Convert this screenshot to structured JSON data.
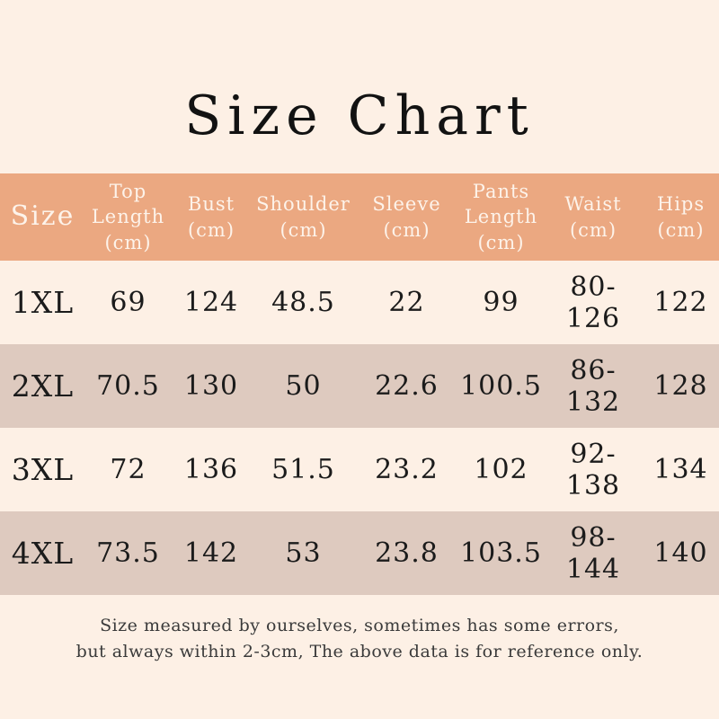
{
  "title": "Size Chart",
  "colors": {
    "page_bg": "#fdf0e5",
    "header_bg": "#eba881",
    "row_alt_bg": "#decabf",
    "header_text": "#fdf3ea",
    "body_text": "#1b1b1b",
    "note_text": "#3a3a3a"
  },
  "table": {
    "columns": [
      {
        "label": "Size"
      },
      {
        "label": "Top\nLength\n(cm)"
      },
      {
        "label": "Bust\n(cm)"
      },
      {
        "label": "Shoulder\n(cm)"
      },
      {
        "label": "Sleeve\n(cm)"
      },
      {
        "label": "Pants\nLength\n(cm)"
      },
      {
        "label": "Waist\n(cm)"
      },
      {
        "label": "Hips\n(cm)"
      }
    ],
    "rows": [
      {
        "size": "1XL",
        "values": [
          "69",
          "124",
          "48.5",
          "22",
          "99",
          "80-126",
          "122"
        ]
      },
      {
        "size": "2XL",
        "values": [
          "70.5",
          "130",
          "50",
          "22.6",
          "100.5",
          "86-132",
          "128"
        ]
      },
      {
        "size": "3XL",
        "values": [
          "72",
          "136",
          "51.5",
          "23.2",
          "102",
          "92-138",
          "134"
        ]
      },
      {
        "size": "4XL",
        "values": [
          "73.5",
          "142",
          "53",
          "23.8",
          "103.5",
          "98-144",
          "140"
        ]
      }
    ]
  },
  "footnote": {
    "line1": "Size measured by ourselves, sometimes has some errors,",
    "line2": "but always within 2-3cm, The above data is for reference only."
  },
  "chart_data": {
    "type": "table",
    "title": "Size Chart",
    "columns": [
      "Size",
      "Top Length (cm)",
      "Bust (cm)",
      "Shoulder (cm)",
      "Sleeve (cm)",
      "Pants Length (cm)",
      "Waist (cm)",
      "Hips (cm)"
    ],
    "rows": [
      [
        "1XL",
        "69",
        "124",
        "48.5",
        "22",
        "99",
        "80-126",
        "122"
      ],
      [
        "2XL",
        "70.5",
        "130",
        "50",
        "22.6",
        "100.5",
        "86-132",
        "128"
      ],
      [
        "3XL",
        "72",
        "136",
        "51.5",
        "23.2",
        "102",
        "92-138",
        "134"
      ],
      [
        "4XL",
        "73.5",
        "142",
        "53",
        "23.8",
        "103.5",
        "98-144",
        "140"
      ]
    ],
    "note": "Size measured by ourselves, sometimes has some errors, but always within 2-3cm, The above data is for reference only."
  }
}
